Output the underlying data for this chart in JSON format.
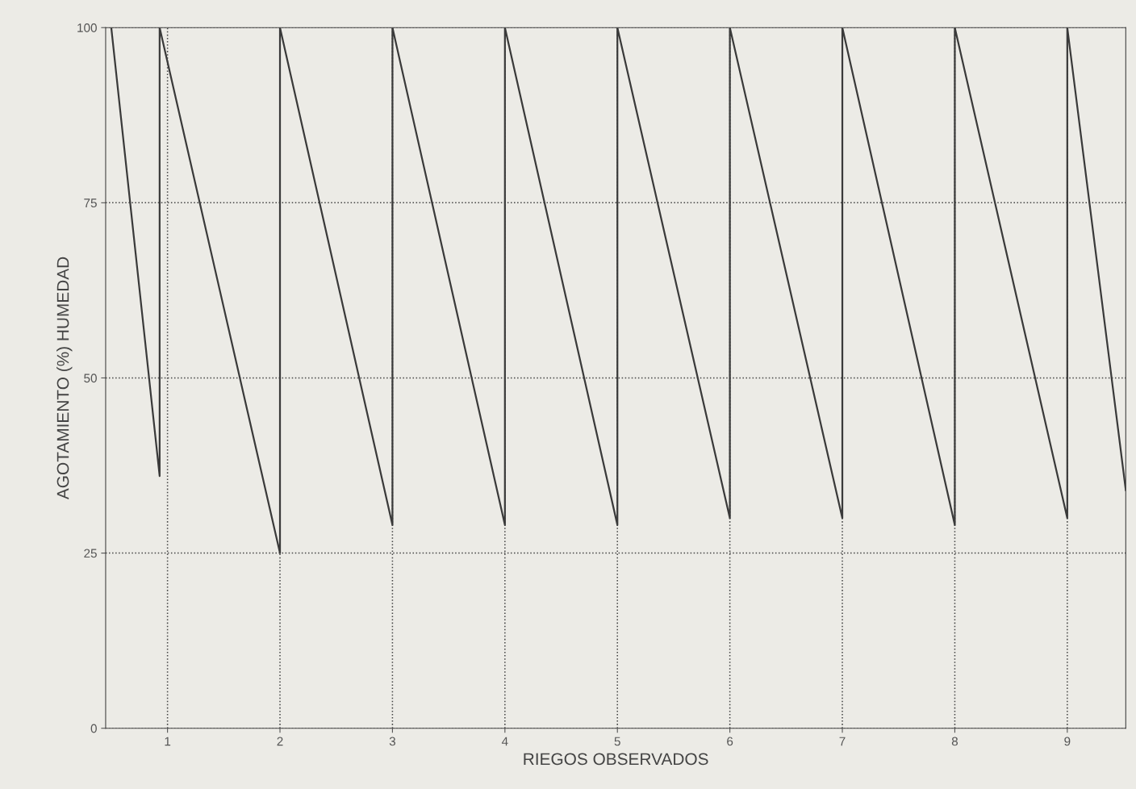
{
  "chart_data": {
    "type": "line",
    "xlabel": "RIEGOS OBSERVADOS",
    "ylabel": "AGOTAMIENTO (%) HUMEDAD",
    "series": [
      {
        "color": "#3a3a3a",
        "x": [
          0.5,
          0.93,
          0.93,
          2,
          2,
          3,
          3,
          4,
          4,
          5,
          5,
          6,
          6,
          7,
          7,
          8,
          8,
          9,
          9,
          9.52
        ],
        "values": [
          100,
          36,
          100,
          25,
          100,
          29,
          100,
          29,
          100,
          29,
          100,
          30,
          100,
          30,
          100,
          29,
          100,
          30,
          100,
          34
        ]
      }
    ],
    "xlim": [
      0.45,
      9.52
    ],
    "xticks": [
      1,
      2,
      3,
      4,
      5,
      6,
      7,
      8,
      9
    ],
    "ylim": [
      0,
      100
    ],
    "yticks": [
      0,
      25,
      50,
      75,
      100
    ],
    "grid": true,
    "line_style": "solid",
    "marker": "none",
    "legend": false
  }
}
